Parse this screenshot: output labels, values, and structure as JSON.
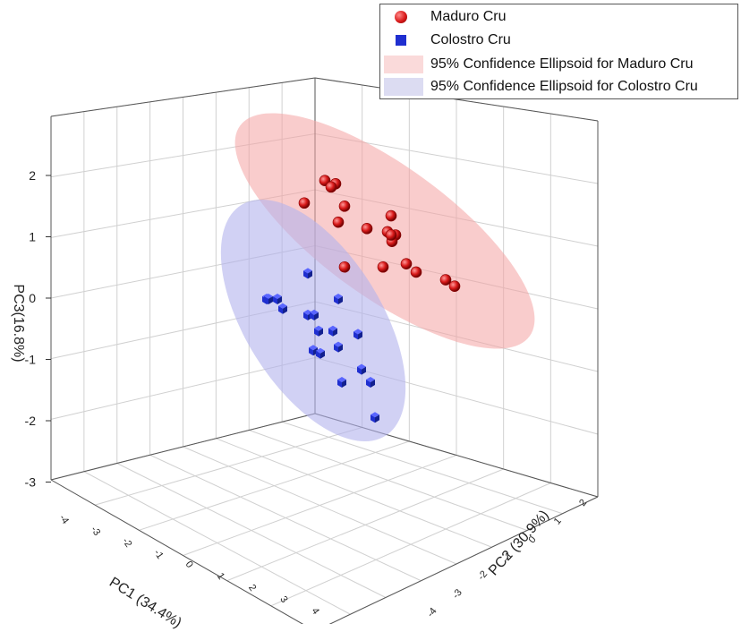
{
  "chart_data": {
    "type": "scatter",
    "subtype": "3d-scatter-with-confidence-ellipsoids",
    "axes": {
      "x": {
        "label": "PC1 (34.4%)",
        "range": [
          -4,
          4
        ],
        "ticks": [
          -4,
          -3,
          -2,
          -1,
          0,
          1,
          2,
          3,
          4
        ]
      },
      "y": {
        "label": "PC2 (30.9%)",
        "range": [
          -4,
          2
        ],
        "ticks": [
          -4,
          -3,
          -2,
          -1,
          0,
          1,
          2
        ]
      },
      "z": {
        "label": "PC3(16.8%)",
        "range": [
          -3,
          3
        ],
        "ticks": [
          -3,
          -2,
          -1,
          0,
          1,
          2
        ]
      }
    },
    "series": [
      {
        "name": "Maduro Cru",
        "marker": "sphere",
        "color": "#d91a1a",
        "projected_pc3": [
          1.5,
          1.85,
          1.8,
          1.75,
          1.45,
          1.2,
          1.1,
          1.3,
          1.05,
          1.0,
          0.9,
          1.0,
          0.5,
          0.5,
          0.55,
          0.42,
          0.3,
          0.2
        ]
      },
      {
        "name": "Colostro Cru",
        "marker": "cube",
        "color": "#1f2fd0",
        "projected_pc3": [
          0.4,
          0.0,
          0.0,
          0.0,
          -0.15,
          -0.25,
          -0.25,
          0.0,
          -0.5,
          -0.5,
          -0.55,
          -0.8,
          -0.85,
          -0.75,
          -1.1,
          -1.3,
          -1.3,
          -1.85
        ]
      }
    ],
    "ellipsoids": [
      {
        "name": "95% Confidence Ellipsoid for Maduro Cru",
        "color": "#f4a3a3"
      },
      {
        "name": "95% Confidence Ellipsoid for Colostro Cru",
        "color": "#b3b3ec"
      }
    ],
    "legend": {
      "position": "top-right"
    },
    "grid": true
  },
  "colors": {
    "maduro": "#d91a1a",
    "colostro": "#1f2fd0",
    "maduro_ellipse": "#f4a3a3",
    "colostro_ellipse": "#b3b3ec",
    "grid": "#d0d0d0",
    "axis": "#333333"
  }
}
